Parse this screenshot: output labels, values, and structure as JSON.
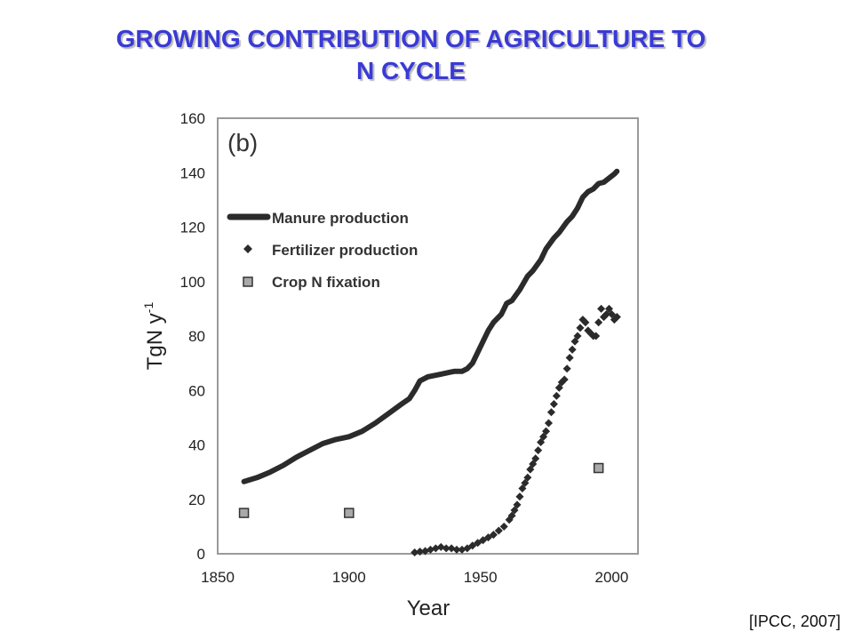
{
  "slide": {
    "title_line1": "GROWING CONTRIBUTION OF AGRICULTURE TO",
    "title_line2": "N CYCLE",
    "source": "[IPCC, 2007]"
  },
  "chart_data": {
    "type": "line",
    "panel_label": "(b)",
    "xlabel": "Year",
    "ylabel": "TgN  y",
    "ylabel_superscript": "-1",
    "xlim": [
      1850,
      2010
    ],
    "ylim": [
      0,
      160
    ],
    "xticks": [
      1850,
      1900,
      1950,
      2000
    ],
    "yticks": [
      0,
      20,
      40,
      60,
      80,
      100,
      120,
      140,
      160
    ],
    "grid": false,
    "legend_position": "upper-left",
    "colors": {
      "line": "#2b2b2b",
      "marker": "#2b2b2b",
      "square_fill": "#a9a9a9",
      "square_stroke": "#333333",
      "frame": "#9a9a9a"
    },
    "series": [
      {
        "name": "Manure production",
        "style": "thick-line",
        "x": [
          1860,
          1865,
          1870,
          1875,
          1880,
          1885,
          1890,
          1895,
          1900,
          1905,
          1910,
          1915,
          1920,
          1923,
          1925,
          1927,
          1930,
          1935,
          1940,
          1943,
          1945,
          1947,
          1950,
          1953,
          1955,
          1958,
          1960,
          1962,
          1965,
          1968,
          1970,
          1973,
          1975,
          1978,
          1980,
          1983,
          1985,
          1987,
          1989,
          1991,
          1993,
          1995,
          1997,
          1999,
          2001,
          2002
        ],
        "y": [
          26.5,
          28,
          30,
          32.5,
          35.5,
          38,
          40.5,
          42,
          43,
          45,
          48,
          51.5,
          55,
          57,
          60,
          63.5,
          65,
          66,
          67,
          67,
          68,
          70,
          76,
          82,
          85,
          88,
          92,
          93,
          97,
          102,
          104,
          108,
          112,
          116,
          118,
          122,
          124,
          127,
          131,
          133,
          134,
          136,
          136.5,
          138,
          139.5,
          140.5
        ]
      },
      {
        "name": "Fertilizer production",
        "style": "diamond-markers",
        "x": [
          1925,
          1927,
          1929,
          1931,
          1933,
          1935,
          1937,
          1939,
          1941,
          1943,
          1945,
          1947,
          1949,
          1951,
          1953,
          1955,
          1957,
          1959,
          1961,
          1962,
          1963,
          1964,
          1965,
          1966,
          1967,
          1968,
          1969,
          1970,
          1971,
          1972,
          1973,
          1974,
          1975,
          1976,
          1977,
          1978,
          1979,
          1980,
          1981,
          1982,
          1983,
          1984,
          1985,
          1986,
          1987,
          1988,
          1989,
          1990,
          1991,
          1992,
          1993,
          1994,
          1995,
          1996,
          1997,
          1998,
          1999,
          2000,
          2001,
          2002
        ],
        "y": [
          0.5,
          0.8,
          1,
          1.5,
          2,
          2.5,
          2,
          2,
          1.5,
          1.5,
          2,
          3,
          4,
          5,
          6,
          7,
          8.5,
          10,
          12.5,
          14,
          16,
          18,
          21,
          24,
          26,
          28,
          31,
          33,
          35,
          38,
          41,
          43,
          45,
          48,
          52,
          55,
          58,
          61,
          63,
          64,
          68,
          72,
          75,
          78,
          80,
          83,
          86,
          85,
          82,
          81,
          80,
          80,
          85,
          90,
          87,
          88,
          90,
          88,
          86,
          87
        ]
      },
      {
        "name": "Crop N fixation",
        "style": "square-markers",
        "x": [
          1860,
          1900,
          1995
        ],
        "y": [
          15,
          15,
          31.5
        ]
      }
    ]
  }
}
